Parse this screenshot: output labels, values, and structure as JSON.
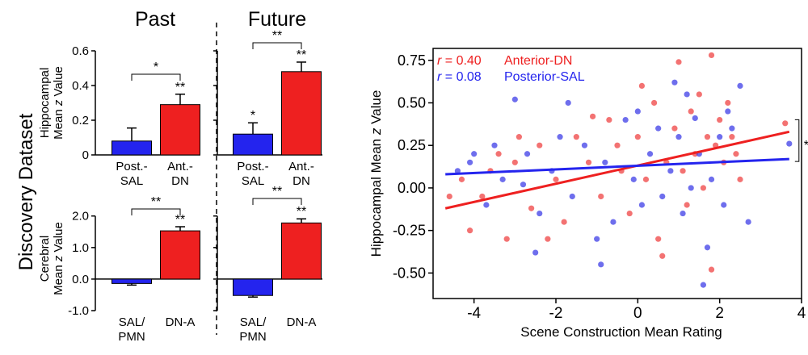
{
  "figure": {
    "dataset_label": "Discovery Dataset",
    "column_titles": [
      "Past",
      "Future"
    ],
    "colors": {
      "blue": "#2424ee",
      "red": "#ee2020",
      "dot_red": "#ee3b3b",
      "dot_blue": "#3636e6"
    }
  },
  "chart_data": [
    {
      "id": "hipp-past",
      "type": "bar",
      "panel": "top-left",
      "ylabel_line1": "Hippocampal",
      "ylabel_prefix": "Mean ",
      "ylabel_italic": "z",
      "ylabel_suffix": " Value",
      "ylim": [
        0,
        0.6
      ],
      "yticks": [
        0,
        0.2,
        0.4,
        0.6
      ],
      "tick_labels": [
        "0",
        "0.2",
        "0.4",
        "0.6"
      ],
      "categories": [
        [
          "Post.-",
          "SAL"
        ],
        [
          "Ant.-",
          "DN"
        ]
      ],
      "values": [
        0.08,
        0.29
      ],
      "errors": [
        0.075,
        0.06
      ],
      "colors": [
        "#2424ee",
        "#ee2020"
      ],
      "sig_labels": [
        "",
        "**"
      ],
      "bracket_label": "*"
    },
    {
      "id": "hipp-future",
      "type": "bar",
      "panel": "top-right",
      "ylim": [
        0,
        0.6
      ],
      "yticks": [
        0,
        0.2,
        0.4,
        0.6
      ],
      "categories": [
        [
          "Post.-",
          "SAL"
        ],
        [
          "Ant.-",
          "DN"
        ]
      ],
      "values": [
        0.12,
        0.48
      ],
      "errors": [
        0.065,
        0.055
      ],
      "colors": [
        "#2424ee",
        "#ee2020"
      ],
      "sig_labels": [
        "*",
        "**"
      ],
      "bracket_label": "**"
    },
    {
      "id": "cereb-past",
      "type": "bar",
      "panel": "bottom-left",
      "ylabel_line1": "Cerebral",
      "ylabel_prefix": "Mean ",
      "ylabel_italic": "z",
      "ylabel_suffix": " Value",
      "ylim": [
        -1.0,
        2.3
      ],
      "yticks": [
        -1.0,
        0.0,
        1.0,
        2.0
      ],
      "tick_labels": [
        "-1.0",
        "0.0",
        "1.0",
        "2.0"
      ],
      "categories": [
        [
          "SAL/",
          "PMN"
        ],
        [
          "DN-A"
        ]
      ],
      "values": [
        -0.14,
        1.53
      ],
      "errors": [
        0.05,
        0.13
      ],
      "colors": [
        "#2424ee",
        "#ee2020"
      ],
      "sig_labels": [
        "",
        "**"
      ],
      "bracket_label": "**"
    },
    {
      "id": "cereb-future",
      "type": "bar",
      "panel": "bottom-right",
      "ylim": [
        -1.0,
        2.3
      ],
      "yticks": [
        -1.0,
        0.0,
        1.0,
        2.0
      ],
      "categories": [
        [
          "SAL/",
          "PMN"
        ],
        [
          "DN-A"
        ]
      ],
      "values": [
        -0.52,
        1.78
      ],
      "errors": [
        0.05,
        0.13
      ],
      "colors": [
        "#2424ee",
        "#ee2020"
      ],
      "sig_labels": [
        "",
        "**"
      ],
      "bracket_label": "**"
    },
    {
      "id": "scatter",
      "type": "scatter",
      "xlabel": "Scene Construction Mean Rating",
      "ylabel_prefix": "Hippocampal Mean ",
      "ylabel_italic": "z",
      "ylabel_suffix": " Value",
      "xlim": [
        -5,
        4
      ],
      "ylim": [
        -0.65,
        0.82
      ],
      "xticks": [
        -4,
        -2,
        0,
        2,
        4
      ],
      "xtick_labels": [
        "-4",
        "-2",
        "0",
        "2",
        "4"
      ],
      "yticks": [
        -0.5,
        -0.25,
        0,
        0.25,
        0.5,
        0.75
      ],
      "ytick_labels": [
        "-0.50",
        "-0.25",
        "0.00",
        "0.25",
        "0.50",
        "0.75"
      ],
      "legend": [
        {
          "r_label": "r",
          "r_value": " = 0.40",
          "name": "Anterior-DN",
          "color": "#ee2020"
        },
        {
          "r_label": "r",
          "r_value": " = 0.08",
          "name": "Posterior-SAL",
          "color": "#2424ee"
        }
      ],
      "bracket_label": "**",
      "fit_lines": [
        {
          "series": "Anterior-DN",
          "x": [
            -4.7,
            3.7
          ],
          "y": [
            -0.12,
            0.33
          ],
          "color": "#ee2020"
        },
        {
          "series": "Posterior-SAL",
          "x": [
            -4.7,
            3.7
          ],
          "y": [
            0.08,
            0.17
          ],
          "color": "#2424ee"
        }
      ],
      "series": [
        {
          "name": "Anterior-DN",
          "color": "#ee3b3b",
          "points": [
            [
              -4.3,
              0.05
            ],
            [
              -4.1,
              -0.25
            ],
            [
              -3.6,
              0.1
            ],
            [
              -3.4,
              0.2
            ],
            [
              -3.2,
              -0.3
            ],
            [
              -3.0,
              0.15
            ],
            [
              -2.6,
              -0.12
            ],
            [
              -2.4,
              0.25
            ],
            [
              -2.0,
              0.05
            ],
            [
              -1.8,
              -0.2
            ],
            [
              -1.5,
              0.3
            ],
            [
              -1.2,
              0.15
            ],
            [
              -0.9,
              -0.05
            ],
            [
              -0.7,
              0.4
            ],
            [
              -0.4,
              0.1
            ],
            [
              -0.2,
              -0.15
            ],
            [
              0.0,
              0.3
            ],
            [
              0.2,
              0.05
            ],
            [
              0.4,
              0.5
            ],
            [
              0.5,
              -0.3
            ],
            [
              0.7,
              0.15
            ],
            [
              0.9,
              0.35
            ],
            [
              1.0,
              0.74
            ],
            [
              1.1,
              0.1
            ],
            [
              1.2,
              -0.1
            ],
            [
              1.3,
              0.45
            ],
            [
              1.4,
              0.2
            ],
            [
              1.5,
              0.55
            ],
            [
              1.6,
              0.0
            ],
            [
              1.7,
              0.3
            ],
            [
              1.8,
              -0.48
            ],
            [
              1.9,
              0.25
            ],
            [
              2.0,
              0.4
            ],
            [
              2.1,
              0.15
            ],
            [
              2.2,
              0.5
            ],
            [
              2.4,
              0.2
            ],
            [
              2.5,
              0.05
            ],
            [
              3.6,
              0.38
            ],
            [
              -3.8,
              -0.05
            ],
            [
              -2.9,
              0.3
            ],
            [
              -1.1,
              0.42
            ],
            [
              0.1,
              0.6
            ],
            [
              -0.5,
              0.25
            ],
            [
              -2.2,
              -0.3
            ],
            [
              -4.6,
              -0.05
            ],
            [
              1.8,
              0.78
            ],
            [
              2.3,
              0.3
            ],
            [
              0.6,
              -0.4
            ]
          ]
        },
        {
          "name": "Posterior-SAL",
          "color": "#3636e6",
          "points": [
            [
              -4.4,
              0.1
            ],
            [
              -4.0,
              0.2
            ],
            [
              -3.7,
              -0.1
            ],
            [
              -3.3,
              0.05
            ],
            [
              -3.0,
              0.52
            ],
            [
              -2.7,
              0.2
            ],
            [
              -2.4,
              -0.15
            ],
            [
              -2.1,
              0.1
            ],
            [
              -1.9,
              0.3
            ],
            [
              -1.6,
              -0.05
            ],
            [
              -1.3,
              0.25
            ],
            [
              -1.0,
              -0.3
            ],
            [
              -0.8,
              0.15
            ],
            [
              -0.6,
              -0.2
            ],
            [
              -0.3,
              0.4
            ],
            [
              -0.1,
              0.05
            ],
            [
              0.1,
              -0.1
            ],
            [
              0.3,
              0.2
            ],
            [
              0.5,
              0.35
            ],
            [
              0.6,
              -0.05
            ],
            [
              0.8,
              0.1
            ],
            [
              1.0,
              0.3
            ],
            [
              1.1,
              -0.15
            ],
            [
              1.2,
              0.55
            ],
            [
              1.3,
              0.0
            ],
            [
              1.5,
              0.2
            ],
            [
              1.7,
              -0.35
            ],
            [
              1.8,
              0.05
            ],
            [
              2.0,
              0.3
            ],
            [
              2.1,
              -0.1
            ],
            [
              2.3,
              0.35
            ],
            [
              2.5,
              0.6
            ],
            [
              2.7,
              -0.2
            ],
            [
              3.7,
              0.26
            ],
            [
              -3.5,
              0.25
            ],
            [
              -2.5,
              -0.38
            ],
            [
              -0.9,
              -0.45
            ],
            [
              0.0,
              0.45
            ],
            [
              1.6,
              -0.57
            ],
            [
              2.2,
              0.45
            ],
            [
              -1.7,
              0.5
            ],
            [
              -4.1,
              0.15
            ],
            [
              0.9,
              0.62
            ],
            [
              -2.8,
              0.02
            ],
            [
              1.4,
              0.41
            ]
          ]
        }
      ]
    }
  ]
}
